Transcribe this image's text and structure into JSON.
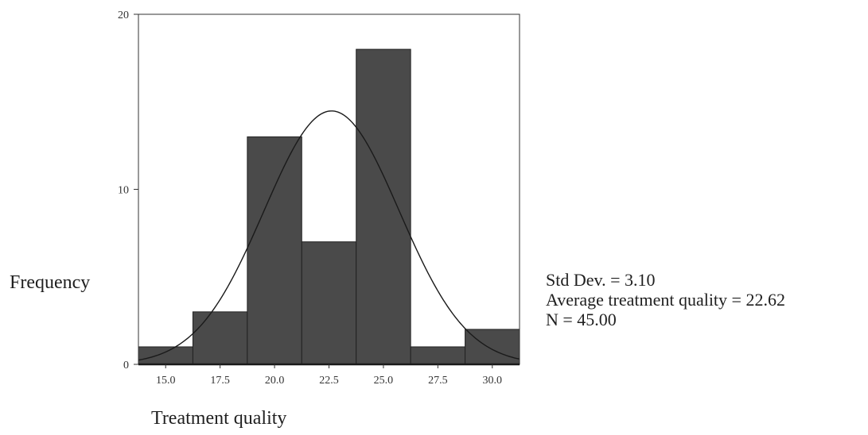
{
  "chart_data": {
    "type": "bar",
    "subtype": "histogram-with-normal-curve",
    "xlabel": "Treatment quality",
    "ylabel": "Frequency",
    "x_ticks": [
      "15.0",
      "17.5",
      "20.0",
      "22.5",
      "25.0",
      "27.5",
      "30.0"
    ],
    "x_tick_values": [
      15.0,
      17.5,
      20.0,
      22.5,
      25.0,
      27.5,
      30.0
    ],
    "y_ticks": [
      "0",
      "10",
      "20"
    ],
    "y_tick_values": [
      0,
      10,
      20
    ],
    "xlim": [
      13.75,
      31.25
    ],
    "ylim": [
      0,
      20
    ],
    "bin_width": 2.5,
    "bin_centers": [
      15.0,
      17.5,
      20.0,
      22.5,
      25.0,
      27.5,
      30.0
    ],
    "values": [
      1,
      3,
      13,
      7,
      18,
      1,
      2
    ],
    "normal_curve": {
      "mean": 22.62,
      "std": 3.1,
      "n": 45
    },
    "bar_color": "#4a4a4a",
    "curve_color": "#1a1a1a",
    "frame_color": "#333333",
    "legend_position": "right",
    "stats": [
      "Std Dev. = 3.10",
      "Average treatment quality = 22.62",
      "N = 45.00"
    ]
  }
}
